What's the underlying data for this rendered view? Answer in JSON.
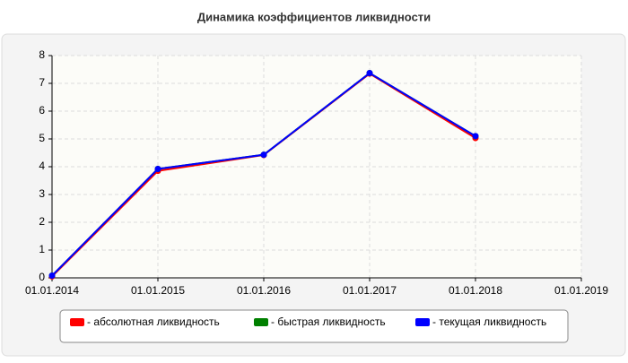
{
  "chart_data": {
    "type": "line",
    "title": "Динамика коэффициентов ликвидности",
    "categories": [
      "01.01.2014",
      "01.01.2015",
      "01.01.2016",
      "01.01.2017",
      "01.01.2018",
      "01.01.2019"
    ],
    "series": [
      {
        "name": "- абсолютная ликвидность",
        "color": "#ff0000",
        "values": [
          0.05,
          3.85,
          4.42,
          7.35,
          5.03,
          null
        ]
      },
      {
        "name": "- быстрая ликвидность",
        "color": "#008000",
        "values": [
          0.08,
          3.92,
          4.43,
          7.37,
          5.1,
          null
        ]
      },
      {
        "name": "- текущая ликвидность",
        "color": "#0000ff",
        "values": [
          0.08,
          3.92,
          4.43,
          7.37,
          5.1,
          null
        ]
      }
    ],
    "ylim": [
      0,
      8
    ],
    "yticks": [
      0,
      1,
      2,
      3,
      4,
      5,
      6,
      7,
      8
    ],
    "grid": true,
    "legend": "bottom"
  }
}
